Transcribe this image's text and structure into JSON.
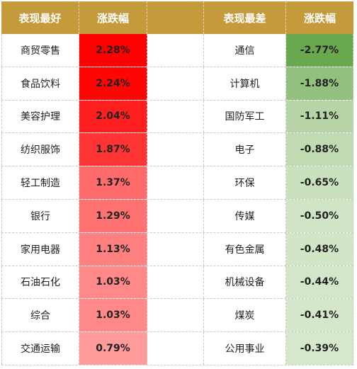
{
  "chart_data": {
    "type": "table",
    "headers": [
      "表现最好",
      "涨跌幅",
      "",
      "表现最差",
      "涨跌幅"
    ],
    "best": [
      {
        "name": "商贸零售",
        "change": "2.28%",
        "value": 2.28
      },
      {
        "name": "食品饮料",
        "change": "2.24%",
        "value": 2.24
      },
      {
        "name": "美容护理",
        "change": "2.04%",
        "value": 2.04
      },
      {
        "name": "纺织服饰",
        "change": "1.87%",
        "value": 1.87
      },
      {
        "name": "轻工制造",
        "change": "1.37%",
        "value": 1.37
      },
      {
        "name": "银行",
        "change": "1.29%",
        "value": 1.29
      },
      {
        "name": "家用电器",
        "change": "1.13%",
        "value": 1.13
      },
      {
        "name": "石油石化",
        "change": "1.03%",
        "value": 1.03
      },
      {
        "name": "综合",
        "change": "1.03%",
        "value": 1.03
      },
      {
        "name": "交通运输",
        "change": "0.79%",
        "value": 0.79
      }
    ],
    "worst": [
      {
        "name": "通信",
        "change": "-2.77%",
        "value": -2.77
      },
      {
        "name": "计算机",
        "change": "-1.88%",
        "value": -1.88
      },
      {
        "name": "国防军工",
        "change": "-1.11%",
        "value": -1.11
      },
      {
        "name": "电子",
        "change": "-0.88%",
        "value": -0.88
      },
      {
        "name": "环保",
        "change": "-0.65%",
        "value": -0.65
      },
      {
        "name": "传媒",
        "change": "-0.50%",
        "value": -0.5
      },
      {
        "name": "有色金属",
        "change": "-0.48%",
        "value": -0.48
      },
      {
        "name": "机械设备",
        "change": "-0.44%",
        "value": -0.44
      },
      {
        "name": "煤炭",
        "change": "-0.41%",
        "value": -0.41
      },
      {
        "name": "公用事业",
        "change": "-0.39%",
        "value": -0.39
      }
    ]
  },
  "colors": {
    "header_bg": "#c49a3a",
    "header_text": "#ffffff",
    "positive_scale": [
      "#ff0000",
      "#ff3030",
      "#ff6060",
      "#ff8c8c",
      "#ffb8b8"
    ],
    "negative_scale": [
      "#6aa84f",
      "#93c47d",
      "#b6d7a8",
      "#cfe3c5",
      "#e3eedb"
    ]
  }
}
